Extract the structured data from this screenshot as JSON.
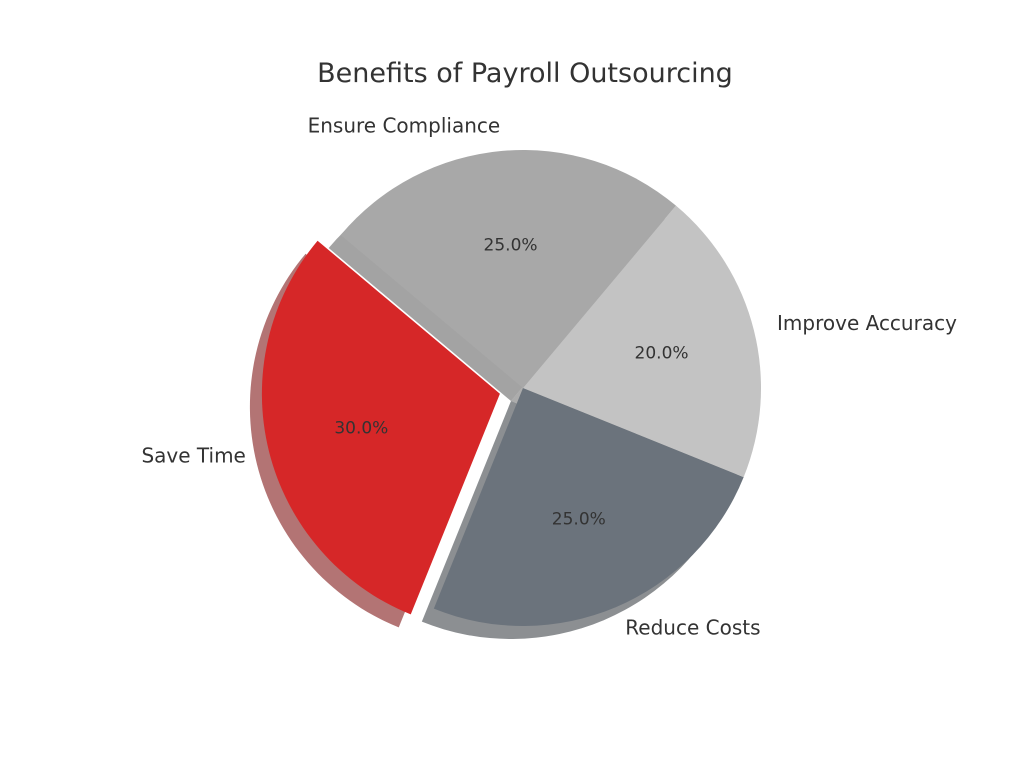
{
  "chart_data": {
    "type": "pie",
    "title": "Benefits of Payroll Outsourcing",
    "categories": [
      "Save Time",
      "Reduce Costs",
      "Improve Accuracy",
      "Ensure Compliance"
    ],
    "values": [
      30,
      25,
      20,
      25
    ],
    "percent_labels": [
      "30.0%",
      "25.0%",
      "20.0%",
      "25.0%"
    ],
    "colors": [
      "#d62728",
      "#6b737c",
      "#c3c3c3",
      "#a8a8a8"
    ],
    "exploded": [
      "Save Time"
    ],
    "shadow": true,
    "start_angle_deg": 140,
    "direction": "counterclockwise"
  }
}
